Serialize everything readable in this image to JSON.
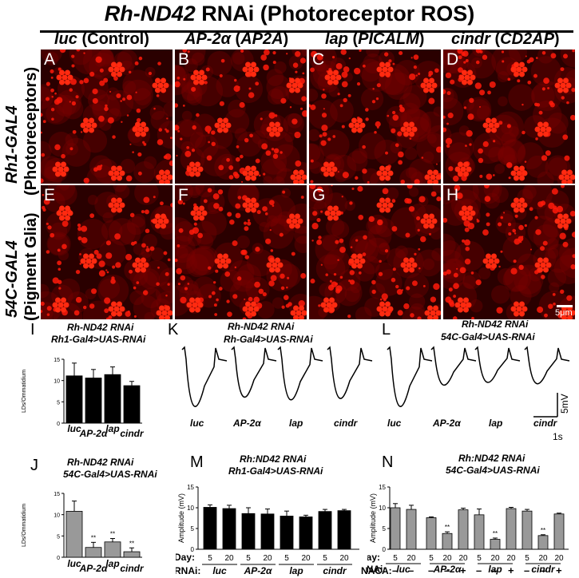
{
  "title": {
    "gene": "Rh-ND42",
    "rest": " RNAi (Photoreceptor ROS)"
  },
  "columns": [
    {
      "gene": "luc",
      "paren": "Control"
    },
    {
      "gene": "AP-2α",
      "paren": "AP2A"
    },
    {
      "gene": "lap",
      "paren": "PICALM"
    },
    {
      "gene": "cindr",
      "paren": "CD2AP"
    }
  ],
  "rows": [
    {
      "driver": "Rh1-GAL4",
      "desc": "(Photoreceptors)"
    },
    {
      "driver": "54C-GAL4",
      "desc": "(Pigment Glia)"
    }
  ],
  "panels": [
    "A",
    "B",
    "C",
    "D",
    "E",
    "F",
    "G",
    "H"
  ],
  "scale_bar": "5μm",
  "panel_I": {
    "label": "I",
    "title1": "Rh-ND42 RNAi",
    "title2": "Rh1-Gal4>UAS-RNAi"
  },
  "panel_J": {
    "label": "J",
    "title1": "Rh-ND42 RNAi",
    "title2": "54C-Gal4>UAS-RNAi"
  },
  "panel_K": {
    "label": "K",
    "title1": "Rh-ND42 RNAi",
    "title2": "Rh-Gal4>UAS-RNAi",
    "traces": [
      "luc",
      "AP-2α",
      "lap",
      "cindr"
    ]
  },
  "panel_L": {
    "label": "L",
    "title1": "Rh-ND42 RNAi",
    "title2": "54C-Gal4>UAS-RNAi",
    "traces": [
      "luc",
      "AP-2α",
      "lap",
      "cindr"
    ],
    "scale_v": "5mV",
    "scale_t": "1s"
  },
  "panel_M": {
    "label": "M",
    "title1": "Rh:ND42 RNAi",
    "title2": "Rh1-Gal4>UAS-RNAi",
    "ylabel": "Amplitude (mV)"
  },
  "panel_N": {
    "label": "N",
    "title1": "Rh:ND42 RNAi",
    "title2": "54C-Gal4>UAS-RNAi",
    "ylabel": "Amplitude (mV)"
  },
  "row_labels": {
    "day": "Day:",
    "rnai": "RNAi:",
    "naca": "NACA:"
  },
  "chart_data": [
    {
      "panel": "I",
      "type": "bar",
      "categories": [
        "luc",
        "AP-2α",
        "lap",
        "cindr"
      ],
      "values": [
        11.1,
        10.6,
        11.4,
        8.8
      ],
      "errors": [
        3.0,
        2.0,
        1.8,
        1.0
      ],
      "ylabel": "LDs/Ommatidium",
      "ylim": [
        0,
        15
      ],
      "yticks": [
        0,
        5,
        10,
        15
      ]
    },
    {
      "panel": "J",
      "type": "bar",
      "categories": [
        "luc",
        "AP-2α",
        "lap",
        "cindr"
      ],
      "values": [
        10.8,
        2.3,
        3.6,
        1.3
      ],
      "errors": [
        2.4,
        1.2,
        0.8,
        0.9
      ],
      "sig": [
        "",
        "**",
        "**",
        "**"
      ],
      "ylabel": "LDs/Ommatidium",
      "ylim": [
        0,
        15
      ],
      "yticks": [
        0,
        5,
        10,
        15
      ]
    },
    {
      "panel": "M",
      "type": "bar",
      "ylabel": "Amplitude (mV)",
      "ylim": [
        0,
        15
      ],
      "yticks": [
        0,
        5,
        10,
        15
      ],
      "groups": [
        "luc",
        "AP-2α",
        "lap",
        "cindr"
      ],
      "days": [
        "5",
        "20",
        "5",
        "20",
        "5",
        "20",
        "5",
        "20"
      ],
      "values": [
        10.1,
        9.8,
        8.6,
        8.5,
        8.0,
        7.8,
        9.1,
        9.3
      ],
      "errors": [
        0.6,
        0.8,
        1.4,
        1.2,
        1.2,
        0.4,
        0.5,
        0.3
      ]
    },
    {
      "panel": "N",
      "type": "bar",
      "ylabel": "Amplitude (mV)",
      "ylim": [
        0,
        15
      ],
      "yticks": [
        0,
        5,
        10,
        15
      ],
      "groups": [
        "luc",
        "AP-2α",
        "lap",
        "cindr"
      ],
      "days": [
        "5",
        "20",
        "5",
        "20",
        "20",
        "5",
        "20",
        "20",
        "5",
        "20",
        "20"
      ],
      "naca": [
        "–",
        "–",
        "–",
        "–",
        "+",
        "–",
        "–",
        "+",
        "–",
        "–",
        "+"
      ],
      "values": [
        10.0,
        9.6,
        7.6,
        3.8,
        9.5,
        8.3,
        2.4,
        9.8,
        9.2,
        3.3,
        8.5
      ],
      "errors": [
        1.0,
        1.0,
        0.2,
        0.4,
        0.4,
        1.4,
        0.3,
        0.3,
        0.4,
        0.2,
        0.2
      ],
      "sig": [
        "",
        "",
        "",
        "**",
        "",
        "",
        "**",
        "",
        "",
        "**",
        ""
      ]
    }
  ]
}
